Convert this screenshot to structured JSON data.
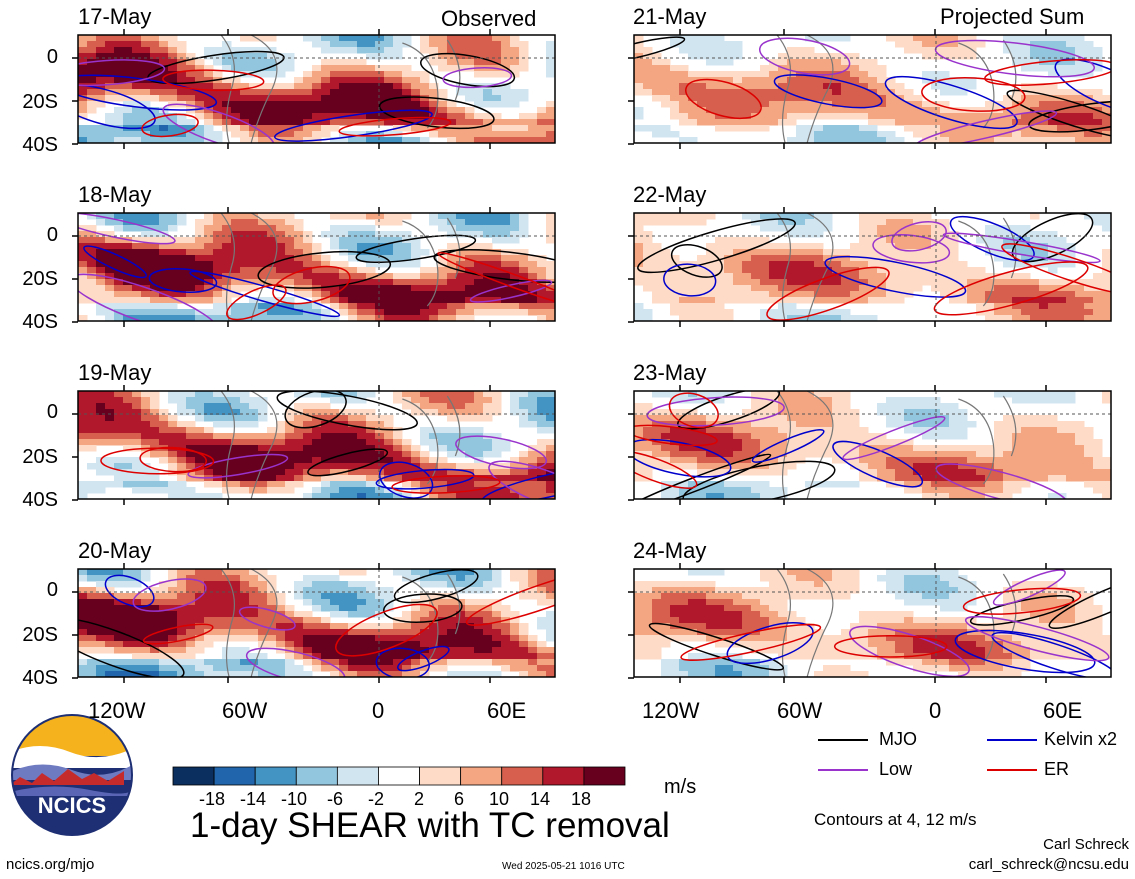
{
  "headers": {
    "observed": "Observed",
    "projected": "Projected Sum"
  },
  "observed_dates": [
    "17-May",
    "18-May",
    "19-May",
    "20-May"
  ],
  "projected_dates": [
    "21-May",
    "22-May",
    "23-May",
    "24-May"
  ],
  "lat_labels": [
    "0",
    "20S",
    "40S"
  ],
  "lon_labels": [
    "120W",
    "60W",
    "0",
    "60E"
  ],
  "colorbar": {
    "unit": "m/s",
    "ticks": [
      "-18",
      "-14",
      "-10",
      "-6",
      "-2",
      "2",
      "6",
      "10",
      "14",
      "18"
    ],
    "colors": [
      "#0b2f5e",
      "#2166ac",
      "#4393c3",
      "#92c5de",
      "#d1e5f0",
      "#ffffff",
      "#fddbc7",
      "#f4a582",
      "#d6604d",
      "#b2182b",
      "#67001f"
    ]
  },
  "legend": {
    "items": [
      {
        "label": "MJO",
        "color": "#000000"
      },
      {
        "label": "Kelvin x2",
        "color": "#0000cc"
      },
      {
        "label": "Low",
        "color": "#9933cc"
      },
      {
        "label": "ER",
        "color": "#dd0000"
      }
    ],
    "contours_note": "Contours at 4, 12 m/s"
  },
  "title": "1-day SHEAR with TC removal",
  "logo_text": "NCICS",
  "footer": {
    "left": "ncics.org/mjo",
    "center": "Wed 2025-05-21 1016 UTC",
    "author": "Carl Schreck",
    "email": "carl_schreck@ncsu.edu"
  }
}
